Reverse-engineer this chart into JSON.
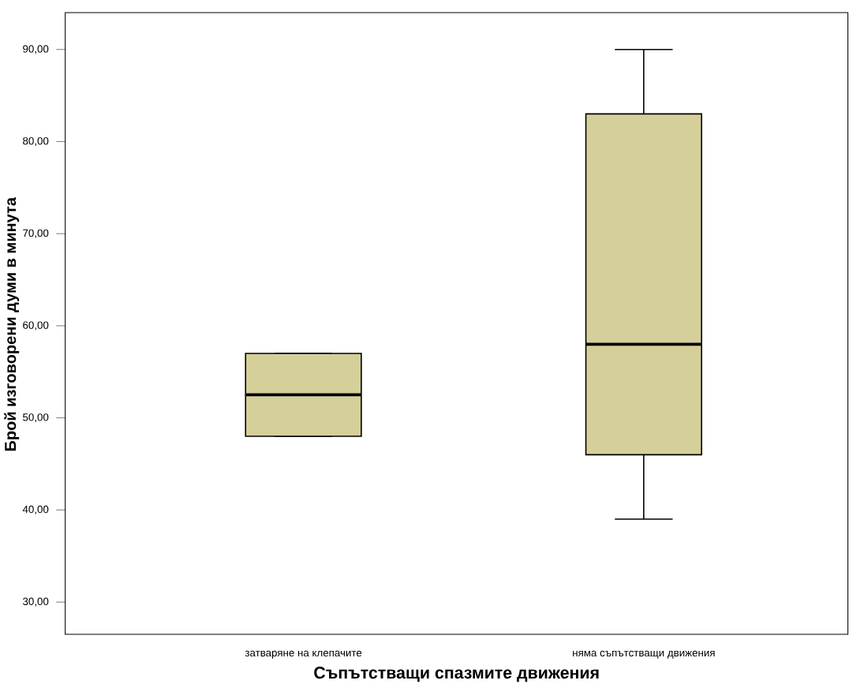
{
  "chart_data": {
    "type": "box",
    "xlabel": "Съпътстващи спазмите движения",
    "ylabel": "Брой изговорени думи в минута",
    "categories": [
      "затваряне на клепачите",
      "няма съпътстващи движения"
    ],
    "color": "#d5d09a",
    "boxes": [
      {
        "low": 48,
        "q1": 48,
        "median": 52.5,
        "q3": 57,
        "high": 57
      },
      {
        "low": 39,
        "q1": 46,
        "median": 58,
        "q3": 83,
        "high": 90
      }
    ],
    "ylim": [
      26.5,
      94
    ],
    "yticks": [
      {
        "value": 30,
        "label": "30,00"
      },
      {
        "value": 40,
        "label": "40,00"
      },
      {
        "value": 50,
        "label": "50,00"
      },
      {
        "value": 60,
        "label": "60,00"
      },
      {
        "value": 70,
        "label": "70,00"
      },
      {
        "value": 80,
        "label": "80,00"
      },
      {
        "value": 90,
        "label": "90,00"
      }
    ],
    "grid": false
  }
}
